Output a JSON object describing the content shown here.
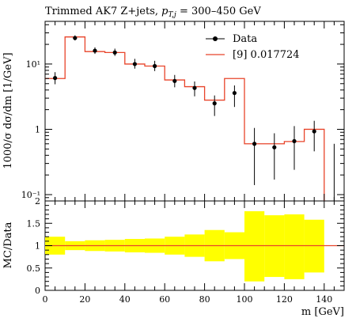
{
  "title_prefix": "Trimmed AK7 Z+jets, ",
  "title_math": "p",
  "title_sub": "T,j",
  "title_range": " = 300–450 GeV",
  "chart_data": [
    {
      "type": "line",
      "panel": "main",
      "xlim": [
        0,
        150
      ],
      "ylim": [
        0.08,
        45
      ],
      "yscale": "log",
      "ylabel": "1000/σ dσ/dm [1/GeV]",
      "ytick_labels": [
        "10⁻¹",
        "1",
        "10¹"
      ],
      "ytick_values": [
        0.1,
        1,
        10
      ],
      "legend_position": "top-right",
      "series": [
        {
          "name": "Data",
          "style": "points",
          "color": "#000000",
          "x": [
            5,
            15,
            25,
            35,
            45,
            55,
            65,
            75,
            85,
            95,
            105,
            115,
            125,
            135,
            145
          ],
          "y": [
            6.1,
            25,
            16,
            15,
            10,
            9.3,
            5.5,
            4.3,
            2.5,
            3.6,
            0.6,
            0.53,
            0.66,
            0.93,
            null
          ],
          "yerr_low": [
            4.9,
            23,
            14.3,
            13.3,
            8.5,
            7.8,
            4.4,
            3.2,
            1.6,
            2.2,
            0.14,
            0.17,
            0.24,
            0.46,
            null
          ],
          "yerr_high": [
            7.5,
            27.5,
            18.0,
            17.2,
            12.0,
            11.2,
            6.8,
            5.4,
            3.3,
            4.7,
            1.05,
            0.87,
            1.12,
            1.35,
            0.6
          ]
        },
        {
          "name": "[9] 0.017724",
          "style": "step",
          "color": "#e8442a",
          "edges": [
            0,
            10,
            20,
            30,
            40,
            50,
            60,
            70,
            80,
            90,
            100,
            110,
            120,
            130,
            140
          ],
          "values": [
            6.0,
            26,
            15.5,
            15,
            10,
            9.3,
            5.7,
            4.5,
            2.8,
            6.0,
            0.6,
            0.6,
            0.65,
            1.0
          ]
        }
      ]
    },
    {
      "type": "area",
      "panel": "ratio",
      "xlim": [
        0,
        150
      ],
      "ylim": [
        0,
        2
      ],
      "xlabel": "m [GeV]",
      "ylabel": "MC/Data",
      "xtick_labels": [
        "0",
        "20",
        "40",
        "60",
        "80",
        "100",
        "120",
        "140"
      ],
      "xtick_values": [
        0,
        20,
        40,
        60,
        80,
        100,
        120,
        140
      ],
      "ytick_labels": [
        "0",
        "0.5",
        "1",
        "1.5",
        "2"
      ],
      "ytick_values": [
        0,
        0.5,
        1,
        1.5,
        2
      ],
      "band_color": "#ffff00",
      "band_edges": [
        0,
        10,
        20,
        30,
        40,
        50,
        60,
        70,
        80,
        90,
        100,
        110,
        120,
        130,
        140
      ],
      "band_low": [
        0.8,
        0.9,
        0.88,
        0.87,
        0.85,
        0.84,
        0.8,
        0.75,
        0.65,
        0.7,
        0.2,
        0.3,
        0.25,
        0.4
      ],
      "band_high": [
        1.2,
        1.1,
        1.12,
        1.13,
        1.15,
        1.16,
        1.2,
        1.25,
        1.35,
        1.3,
        1.77,
        1.68,
        1.7,
        1.58
      ],
      "ratio_line_color": "#e8442a",
      "ratio_value": 1.0
    }
  ],
  "legend": {
    "data_label": "Data",
    "mc_label": "[9] 0.017724"
  }
}
